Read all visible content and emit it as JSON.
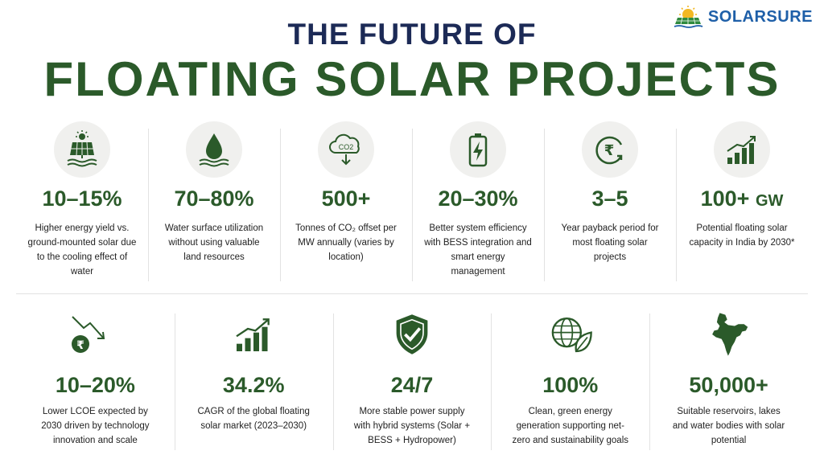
{
  "brand": {
    "name": "SOLARSURE"
  },
  "title": {
    "line1": "THE FUTURE OF",
    "line2": "FLOATING SOLAR PROJECTS"
  },
  "colors": {
    "green": "#2b5a2a",
    "navy": "#1c2a56",
    "brand_blue": "#1e5fa8",
    "icon_bg": "#f0f0ee"
  },
  "top_stats": [
    {
      "icon": "solar-panel-water-icon",
      "value": "10–15%",
      "unit": "",
      "desc": "Higher energy yield vs. ground-mounted solar due to the cooling effect of water"
    },
    {
      "icon": "water-drop-icon",
      "value": "70–80%",
      "unit": "",
      "desc": "Water surface utilization without using valuable land resources"
    },
    {
      "icon": "co2-cloud-icon",
      "icon_text": "CO2",
      "value": "500+",
      "unit": "",
      "desc": "Tonnes of CO₂ offset per MW annually (varies by location)"
    },
    {
      "icon": "battery-icon",
      "value": "20–30%",
      "unit": "",
      "desc": "Better system efficiency with BESS integration and smart energy management"
    },
    {
      "icon": "rupee-cycle-icon",
      "icon_text": "₹",
      "value": "3–5",
      "unit": "",
      "desc": "Year payback period for most floating solar projects"
    },
    {
      "icon": "growth-bars-icon",
      "value": "100+",
      "unit": "GW",
      "desc": "Potential floating solar capacity in India by 2030*"
    }
  ],
  "bottom_stats": [
    {
      "icon": "rupee-down-trend-icon",
      "icon_text": "₹",
      "value": "10–20%",
      "desc": "Lower LCOE expected by 2030 driven by technology innovation and scale"
    },
    {
      "icon": "growth-bars-icon",
      "value": "34.2%",
      "desc": "CAGR of the global floating solar market (2023–2030)"
    },
    {
      "icon": "shield-check-icon",
      "value": "24/7",
      "desc": "More stable power supply with hybrid systems (Solar + BESS + Hydropower)"
    },
    {
      "icon": "globe-leaf-icon",
      "value": "100%",
      "desc": "Clean, green energy generation supporting net-zero and sustainability goals"
    },
    {
      "icon": "india-map-icon",
      "value": "50,000+",
      "desc": "Suitable reservoirs, lakes and water bodies with solar potential"
    }
  ]
}
